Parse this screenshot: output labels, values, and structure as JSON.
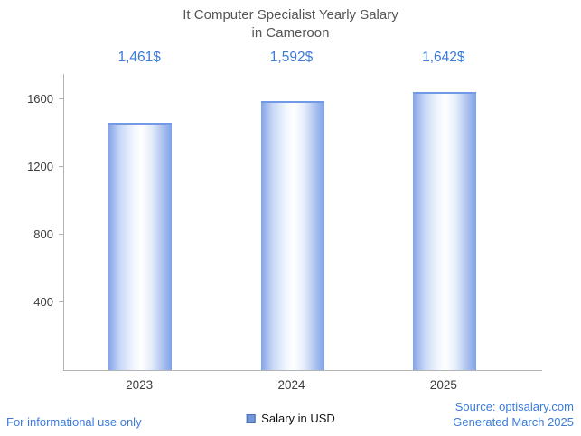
{
  "title": {
    "line1": "It Computer Specialist Yearly Salary",
    "line2": "in Cameroon"
  },
  "chart_data": {
    "type": "bar",
    "title": "It Computer Specialist Yearly Salary in Cameroon",
    "categories": [
      "2023",
      "2024",
      "2025"
    ],
    "values": [
      1461,
      1592,
      1642
    ],
    "value_labels": [
      "1,461$",
      "1,592$",
      "1,642$"
    ],
    "series_name": "Salary in USD",
    "xlabel": "",
    "ylabel": "",
    "ylim": [
      0,
      1750
    ],
    "yticks": [
      400,
      800,
      1200,
      1600
    ],
    "ytick_labels": [
      "400",
      "800",
      "1200",
      "1600"
    ],
    "grid": false,
    "legend_position": "bottom",
    "bar_color": "#7fa2e9",
    "label_color": "#3b7cdb"
  },
  "legend": {
    "label": "Salary in USD",
    "marker_color": "#7296d9"
  },
  "footer": {
    "left_note": "For informational use only",
    "source_line1": "Source: optisalary.com",
    "source_line2": "Generated March 2025"
  }
}
